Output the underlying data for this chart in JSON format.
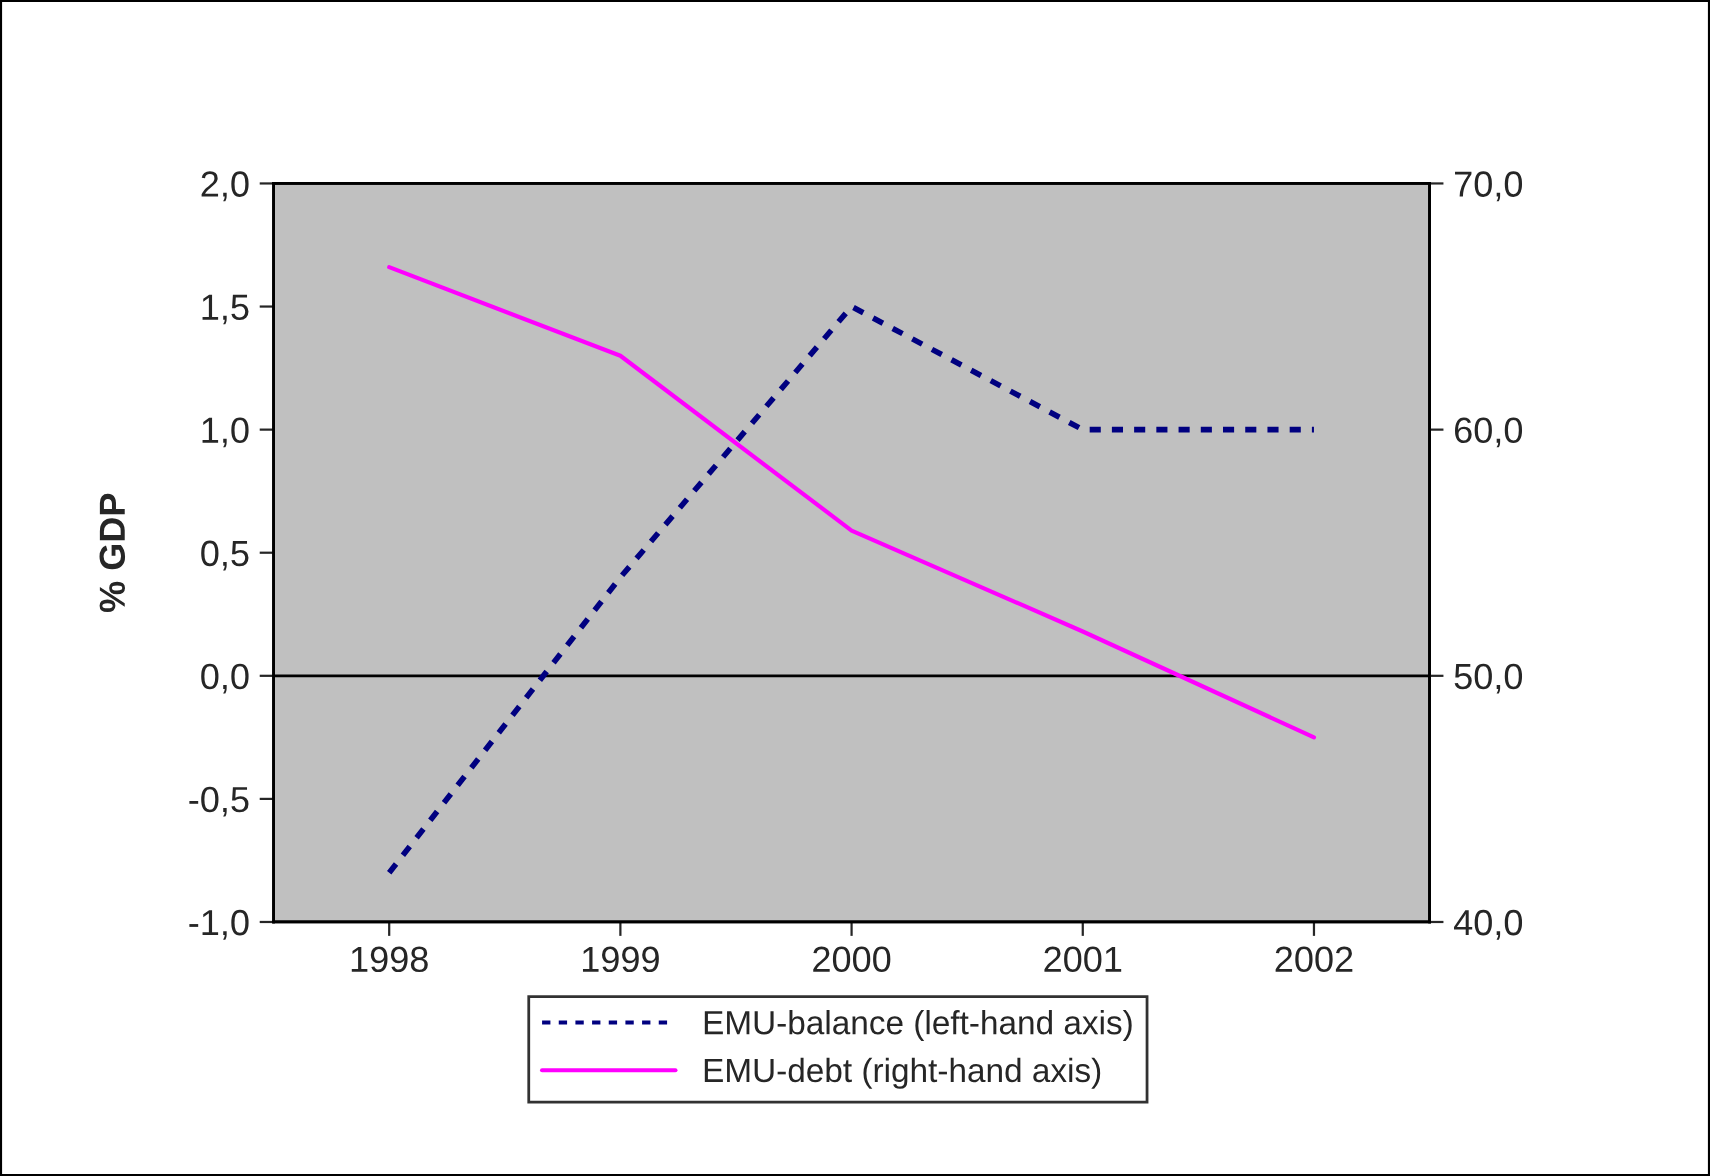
{
  "chart_data": {
    "type": "line",
    "ylabel": "% GDP",
    "categories": [
      "1998",
      "1999",
      "2000",
      "2001",
      "2002"
    ],
    "series": [
      {
        "name": "EMU-balance (left-hand axis)",
        "color": "#000080",
        "values": [
          -0.8,
          0.4,
          1.5,
          1.0,
          1.0
        ],
        "line_style": "dashed"
      },
      {
        "name": "EMU-debt (right-hand axis)",
        "color": "#ff00ff",
        "values": [
          66.6,
          63.0,
          55.9,
          51.8,
          47.5
        ],
        "axis": "y2",
        "line_style": "solid"
      }
    ],
    "ylim": [
      -1.0,
      2.0
    ],
    "yticks": [
      {
        "value": -1.0,
        "label": "-1,0"
      },
      {
        "value": -0.5,
        "label": "-0,5"
      },
      {
        "value": 0.0,
        "label": "0,0"
      },
      {
        "value": 0.5,
        "label": "0,5"
      },
      {
        "value": 1.0,
        "label": "1,0"
      },
      {
        "value": 1.5,
        "label": "1,5"
      },
      {
        "value": 2.0,
        "label": "2,0"
      }
    ],
    "y2lim": [
      40,
      70
    ],
    "y2ticks": [
      {
        "value": 40,
        "label": "40,0"
      },
      {
        "value": 50,
        "label": "50,0"
      },
      {
        "value": 60,
        "label": "60,0"
      },
      {
        "value": 70,
        "label": "70,0"
      }
    ],
    "ref_lines": [
      {
        "axis": "y",
        "value": 0.0,
        "color": "#000000"
      }
    ],
    "grid": false,
    "legend": "bottom",
    "marker": "none"
  }
}
